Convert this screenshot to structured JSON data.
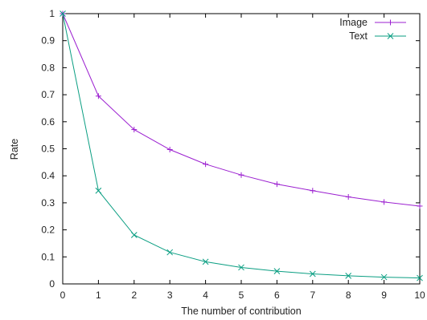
{
  "chart_data": {
    "type": "line",
    "xlabel": "The number of contribution",
    "ylabel": "Rate",
    "xlim": [
      0,
      10
    ],
    "ylim": [
      0,
      1
    ],
    "x": [
      0,
      1,
      2,
      3,
      4,
      5,
      6,
      7,
      8,
      9,
      10
    ],
    "xticks": [
      "0",
      "1",
      "2",
      "3",
      "4",
      "5",
      "6",
      "7",
      "8",
      "9",
      "10"
    ],
    "yticks": [
      "0",
      "0.1",
      "0.2",
      "0.3",
      "0.4",
      "0.5",
      "0.6",
      "0.7",
      "0.8",
      "0.9",
      "1"
    ],
    "legend_position": "top-right",
    "grid": false,
    "series": [
      {
        "name": "Image",
        "color": "#9b1fd0",
        "marker": "plus",
        "values": [
          1.0,
          0.695,
          0.571,
          0.497,
          0.443,
          0.403,
          0.369,
          0.345,
          0.322,
          0.303,
          0.288
        ]
      },
      {
        "name": "Text",
        "color": "#0a9e82",
        "marker": "cross",
        "values": [
          1.0,
          0.345,
          0.181,
          0.117,
          0.082,
          0.061,
          0.047,
          0.037,
          0.03,
          0.025,
          0.022
        ]
      }
    ]
  }
}
